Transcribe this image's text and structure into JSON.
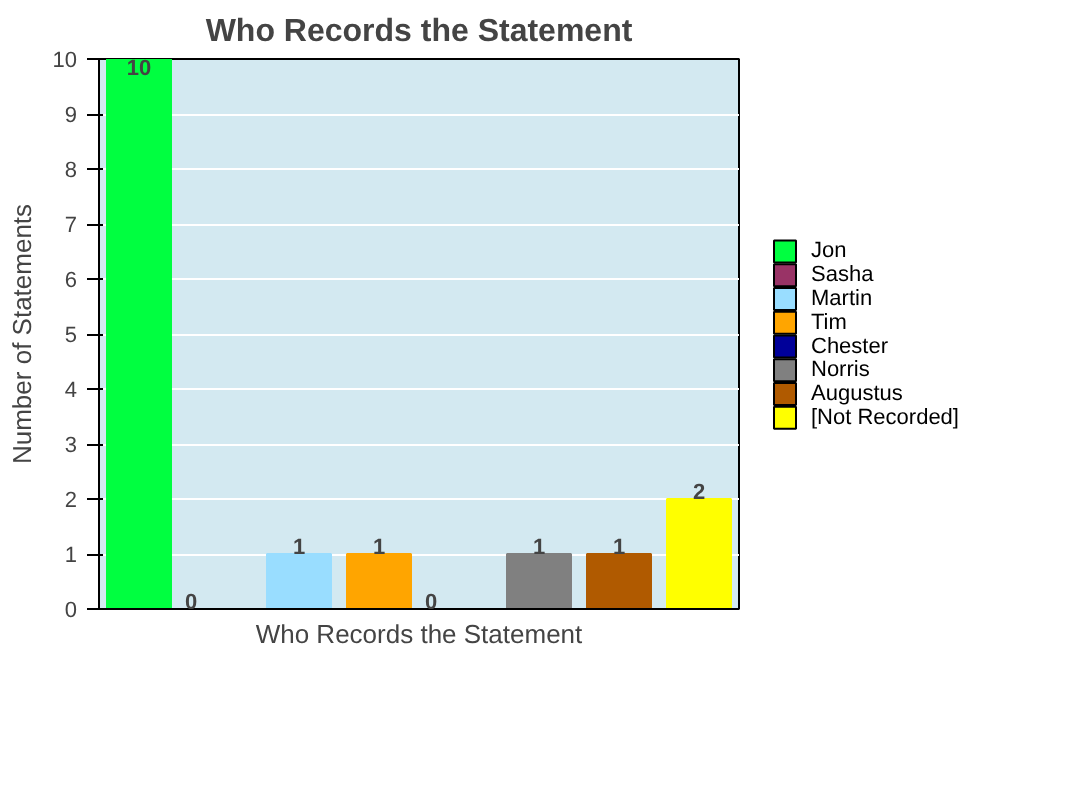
{
  "chart_data": {
    "type": "bar",
    "title": "Who Records the Statement",
    "xlabel": "Who Records the Statement",
    "ylabel": "Number of Statements",
    "categories": [
      null,
      null,
      null,
      null,
      null,
      null,
      null,
      null
    ],
    "series": [
      {
        "name": "Jon",
        "color": "#00ff40",
        "values": [
          10,
          null,
          null,
          null,
          null,
          null,
          null,
          null
        ]
      },
      {
        "name": "Sasha",
        "color": "#993366",
        "values": [
          null,
          0,
          null,
          null,
          null,
          null,
          null,
          null
        ]
      },
      {
        "name": "Martin",
        "color": "#99ddff",
        "values": [
          null,
          null,
          1,
          null,
          null,
          null,
          null,
          null
        ]
      },
      {
        "name": "Tim",
        "color": "#ffa500",
        "values": [
          null,
          null,
          null,
          1,
          null,
          null,
          null,
          null
        ]
      },
      {
        "name": "Chester",
        "color": "#000099",
        "values": [
          null,
          null,
          null,
          null,
          0,
          null,
          null,
          null
        ]
      },
      {
        "name": "Norris",
        "color": "#808080",
        "values": [
          null,
          null,
          null,
          null,
          null,
          1,
          null,
          null
        ]
      },
      {
        "name": "Augustus",
        "color": "#b05a00",
        "values": [
          null,
          null,
          null,
          null,
          null,
          null,
          1,
          null
        ]
      },
      {
        "name": "[Not Recorded]",
        "color": "#ffff00",
        "values": [
          null,
          null,
          null,
          null,
          null,
          null,
          null,
          2
        ]
      }
    ],
    "ylim": [
      0,
      10
    ],
    "yticks": [
      0,
      1,
      2,
      3,
      4,
      5,
      6,
      7,
      8,
      9,
      10
    ],
    "grid": "y",
    "legend": "right",
    "data_labels": true
  }
}
